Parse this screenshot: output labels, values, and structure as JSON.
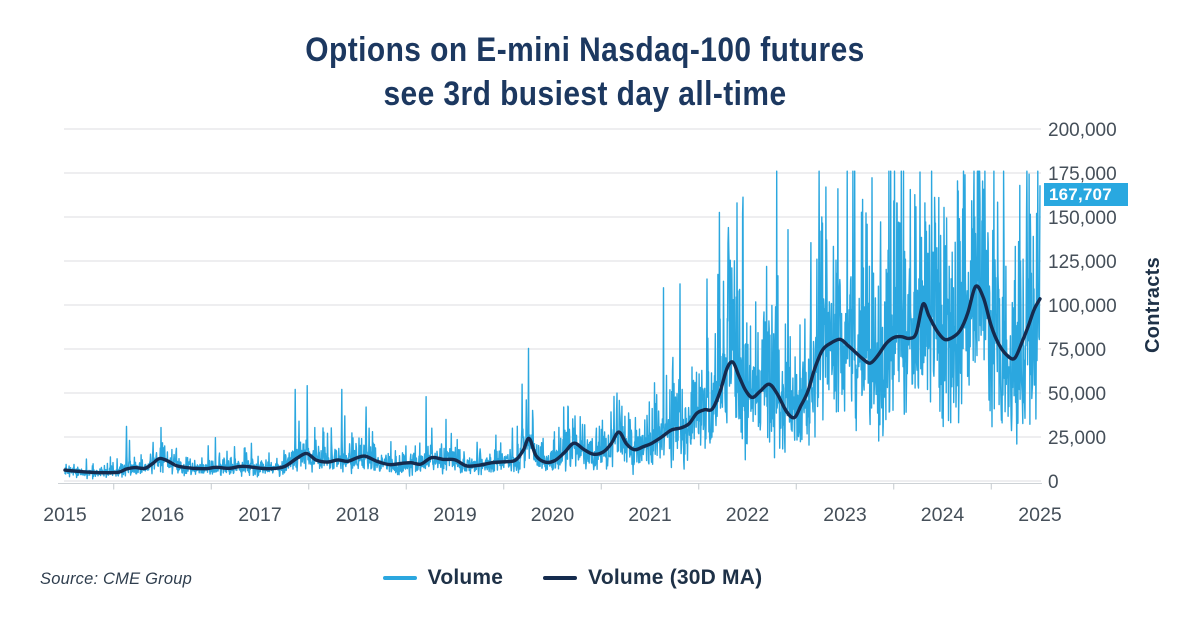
{
  "header": {
    "title_line1": "Options on E-mini Nasdaq-100 futures",
    "title_line2": "see 3rd busiest day all-time"
  },
  "source": {
    "label": "Source: CME Group"
  },
  "legend": [
    {
      "label": "Volume",
      "color_key": "volume"
    },
    {
      "label": "Volume (30D MA)",
      "color_key": "ma"
    }
  ],
  "colors": {
    "volume": "#2BA7DF",
    "ma": "#152B4E",
    "title": "#1C3860",
    "grid": "#DCDEE0",
    "axis_line": "#CDD2D6",
    "tick": "#C2C8CD",
    "axis_text": "#454F59",
    "legend_text": "#1E3147",
    "source_text": "#2F3E4E",
    "tag_bg": "#29A8E0",
    "tag_text": "#FFFFFF"
  },
  "chart_data": {
    "type": "line",
    "title": "Options on E-mini Nasdaq-100 futures see 3rd busiest day all-time",
    "xlabel": "",
    "ylabel": "Contracts",
    "x_range": [
      2015,
      2025
    ],
    "y_range": [
      0,
      200000
    ],
    "grid": "horizontal",
    "legend_position": "bottom",
    "x_ticks": [
      "2015",
      "2016",
      "2017",
      "2018",
      "2019",
      "2020",
      "2021",
      "2022",
      "2023",
      "2024",
      "2025"
    ],
    "y_ticks": [
      {
        "value": 0,
        "label": "0"
      },
      {
        "value": 25000,
        "label": "25,000"
      },
      {
        "value": 50000,
        "label": "50,000"
      },
      {
        "value": 75000,
        "label": "75,000"
      },
      {
        "value": 100000,
        "label": "100,000"
      },
      {
        "value": 125000,
        "label": "125,000"
      },
      {
        "value": 150000,
        "label": "150,000"
      },
      {
        "value": 175000,
        "label": "175,000"
      },
      {
        "value": 200000,
        "label": "200,000"
      }
    ],
    "annotation": {
      "label": "167,707",
      "value": 167707
    },
    "series": [
      {
        "name": "Volume",
        "kind": "daily_stochastic_around_ma",
        "points_per_year": 260,
        "noise_sigma": 0.32,
        "seed": 11,
        "last_value": 167707,
        "spikes": [
          [
            2015.63,
            31000
          ],
          [
            2015.66,
            23000
          ],
          [
            2016.05,
            16500
          ],
          [
            2016.12,
            15000
          ],
          [
            2016.47,
            20000
          ],
          [
            2016.86,
            16000
          ],
          [
            2017.36,
            52000
          ],
          [
            2017.4,
            34000
          ],
          [
            2017.84,
            52000
          ],
          [
            2017.87,
            37000
          ],
          [
            2018.09,
            42000
          ],
          [
            2018.12,
            30000
          ],
          [
            2018.76,
            30000
          ],
          [
            2018.96,
            27000
          ],
          [
            2019.42,
            26000
          ],
          [
            2019.59,
            30000
          ],
          [
            2019.69,
            55000
          ],
          [
            2019.73,
            46000
          ],
          [
            2020.16,
            42000
          ],
          [
            2020.23,
            37000
          ],
          [
            2020.45,
            30000
          ],
          [
            2020.63,
            48000
          ],
          [
            2020.69,
            40000
          ],
          [
            2020.85,
            36000
          ],
          [
            2021.06,
            44000
          ],
          [
            2021.17,
            60000
          ],
          [
            2021.33,
            52000
          ],
          [
            2021.46,
            56000
          ],
          [
            2021.6,
            62000
          ],
          [
            2021.72,
            92000
          ],
          [
            2021.8,
            135000
          ],
          [
            2021.84,
            121000
          ],
          [
            2021.9,
            108000
          ],
          [
            2022.03,
            88000
          ],
          [
            2022.17,
            96000
          ],
          [
            2022.29,
            99000
          ],
          [
            2022.44,
            82000
          ],
          [
            2022.59,
            92000
          ],
          [
            2022.71,
            126000
          ],
          [
            2022.76,
            150000
          ],
          [
            2022.81,
            137000
          ],
          [
            2022.92,
            118000
          ],
          [
            2023.06,
            116000
          ],
          [
            2023.19,
            121000
          ],
          [
            2023.31,
            104000
          ],
          [
            2023.43,
            118000
          ],
          [
            2023.53,
            158000
          ],
          [
            2023.62,
            126000
          ],
          [
            2023.77,
            175500
          ],
          [
            2023.82,
            158000
          ],
          [
            2023.95,
            120000
          ],
          [
            2024.07,
            122000
          ],
          [
            2024.18,
            136000
          ],
          [
            2024.23,
            174000
          ],
          [
            2024.33,
            150000
          ],
          [
            2024.45,
            131000
          ],
          [
            2024.57,
            118000
          ],
          [
            2024.65,
            122000
          ],
          [
            2024.78,
            136000
          ],
          [
            2024.86,
            149000
          ],
          [
            2024.93,
            139000
          ],
          [
            2024.965,
            152000
          ],
          [
            2025.0,
            167707
          ]
        ]
      },
      {
        "name": "Volume (30D MA)",
        "kind": "line",
        "points": [
          [
            2015.0,
            6200
          ],
          [
            2015.1,
            5600
          ],
          [
            2015.25,
            5000
          ],
          [
            2015.4,
            4700
          ],
          [
            2015.55,
            5000
          ],
          [
            2015.63,
            6800
          ],
          [
            2015.72,
            7600
          ],
          [
            2015.82,
            7200
          ],
          [
            2015.9,
            10000
          ],
          [
            2015.97,
            12800
          ],
          [
            2016.05,
            11500
          ],
          [
            2016.15,
            8600
          ],
          [
            2016.3,
            7300
          ],
          [
            2016.45,
            7000
          ],
          [
            2016.55,
            7800
          ],
          [
            2016.68,
            7200
          ],
          [
            2016.8,
            8300
          ],
          [
            2016.9,
            8000
          ],
          [
            2017.0,
            7300
          ],
          [
            2017.12,
            7000
          ],
          [
            2017.25,
            8200
          ],
          [
            2017.38,
            13000
          ],
          [
            2017.48,
            15600
          ],
          [
            2017.58,
            11800
          ],
          [
            2017.7,
            10800
          ],
          [
            2017.8,
            12000
          ],
          [
            2017.9,
            11200
          ],
          [
            2018.0,
            13300
          ],
          [
            2018.08,
            14100
          ],
          [
            2018.2,
            11200
          ],
          [
            2018.33,
            9300
          ],
          [
            2018.45,
            10000
          ],
          [
            2018.55,
            10400
          ],
          [
            2018.65,
            9600
          ],
          [
            2018.76,
            13300
          ],
          [
            2018.88,
            12300
          ],
          [
            2019.0,
            12000
          ],
          [
            2019.12,
            8600
          ],
          [
            2019.25,
            9000
          ],
          [
            2019.38,
            10400
          ],
          [
            2019.5,
            10900
          ],
          [
            2019.62,
            11800
          ],
          [
            2019.7,
            17500
          ],
          [
            2019.76,
            24200
          ],
          [
            2019.83,
            14500
          ],
          [
            2019.92,
            10800
          ],
          [
            2020.02,
            11500
          ],
          [
            2020.12,
            16000
          ],
          [
            2020.22,
            21500
          ],
          [
            2020.32,
            18000
          ],
          [
            2020.42,
            15200
          ],
          [
            2020.52,
            16500
          ],
          [
            2020.6,
            21000
          ],
          [
            2020.68,
            27800
          ],
          [
            2020.76,
            21000
          ],
          [
            2020.84,
            17800
          ],
          [
            2020.93,
            19500
          ],
          [
            2021.02,
            21500
          ],
          [
            2021.12,
            25000
          ],
          [
            2021.22,
            29000
          ],
          [
            2021.32,
            30200
          ],
          [
            2021.4,
            32500
          ],
          [
            2021.48,
            38500
          ],
          [
            2021.56,
            40500
          ],
          [
            2021.64,
            41000
          ],
          [
            2021.72,
            51000
          ],
          [
            2021.79,
            64000
          ],
          [
            2021.85,
            67500
          ],
          [
            2021.91,
            60000
          ],
          [
            2021.98,
            51500
          ],
          [
            2022.05,
            47500
          ],
          [
            2022.13,
            51000
          ],
          [
            2022.22,
            55000
          ],
          [
            2022.3,
            50000
          ],
          [
            2022.4,
            39500
          ],
          [
            2022.48,
            36000
          ],
          [
            2022.55,
            43000
          ],
          [
            2022.62,
            51000
          ],
          [
            2022.69,
            64000
          ],
          [
            2022.77,
            74500
          ],
          [
            2022.86,
            78500
          ],
          [
            2022.95,
            80500
          ],
          [
            2023.03,
            77000
          ],
          [
            2023.1,
            73500
          ],
          [
            2023.18,
            69500
          ],
          [
            2023.26,
            67000
          ],
          [
            2023.34,
            71500
          ],
          [
            2023.42,
            78000
          ],
          [
            2023.5,
            81500
          ],
          [
            2023.58,
            82000
          ],
          [
            2023.66,
            81000
          ],
          [
            2023.73,
            84000
          ],
          [
            2023.8,
            100500
          ],
          [
            2023.86,
            94000
          ],
          [
            2023.94,
            85500
          ],
          [
            2024.02,
            80500
          ],
          [
            2024.1,
            81500
          ],
          [
            2024.18,
            85500
          ],
          [
            2024.26,
            95500
          ],
          [
            2024.34,
            110500
          ],
          [
            2024.42,
            104000
          ],
          [
            2024.5,
            88000
          ],
          [
            2024.58,
            77500
          ],
          [
            2024.66,
            71500
          ],
          [
            2024.74,
            69800
          ],
          [
            2024.82,
            79500
          ],
          [
            2024.88,
            88000
          ],
          [
            2024.94,
            97500
          ],
          [
            2025.0,
            103500
          ]
        ]
      }
    ]
  }
}
